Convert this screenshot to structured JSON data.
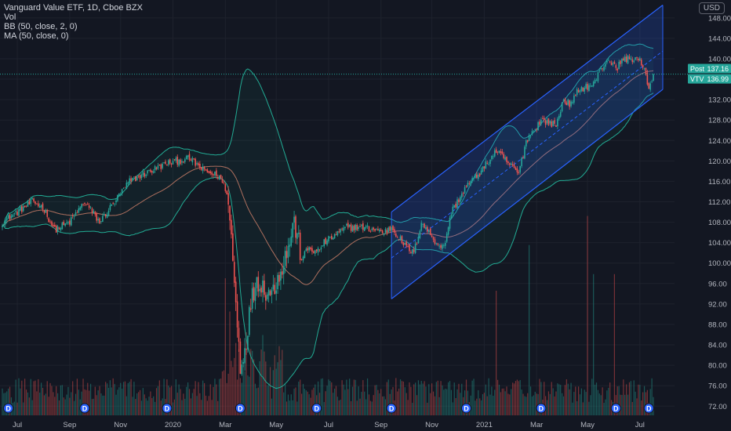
{
  "chart_data": {
    "type": "candlestick",
    "title": "Vanguard Value ETF, 1D, Cboe BZX",
    "indicators": [
      "Vol",
      "BB (50, close, 2, 0)",
      "MA (50, close, 0)"
    ],
    "currency": "USD",
    "y_axis": {
      "ticks": [
        "148.00",
        "144.00",
        "140.00",
        "136.00",
        "132.00",
        "128.00",
        "124.00",
        "120.00",
        "116.00",
        "112.00",
        "108.00",
        "104.00",
        "100.00",
        "96.00",
        "92.00",
        "88.00",
        "84.00",
        "80.00",
        "76.00",
        "72.00"
      ],
      "range": [
        70.2,
        151.5
      ]
    },
    "x_axis": {
      "ticks": [
        "Jul",
        "Sep",
        "Nov",
        "2020",
        "Mar",
        "May",
        "Jul",
        "Sep",
        "Nov",
        "2021",
        "Mar",
        "May",
        "Jul"
      ]
    },
    "price_tags": [
      {
        "label": "Post",
        "value": "137.16"
      },
      {
        "label": "VTV",
        "value": "136.99"
      }
    ],
    "last_price": 136.99,
    "close_series": {
      "anchors": [
        [
          0,
          108
        ],
        [
          10,
          110
        ],
        [
          20,
          112
        ],
        [
          27,
          111
        ],
        [
          35,
          106.5
        ],
        [
          45,
          108
        ],
        [
          55,
          112
        ],
        [
          65,
          108
        ],
        [
          75,
          112
        ],
        [
          85,
          116
        ],
        [
          95,
          117.5
        ],
        [
          110,
          119.5
        ],
        [
          125,
          120.5
        ],
        [
          135,
          118
        ],
        [
          145,
          117
        ],
        [
          150,
          114
        ],
        [
          153,
          105
        ],
        [
          156,
          92
        ],
        [
          159,
          80
        ],
        [
          162,
          83
        ],
        [
          166,
          92
        ],
        [
          170,
          97
        ],
        [
          175,
          95
        ],
        [
          180,
          94
        ],
        [
          185,
          98
        ],
        [
          190,
          102
        ],
        [
          195,
          108
        ],
        [
          200,
          101
        ],
        [
          205,
          103
        ],
        [
          210,
          102
        ],
        [
          215,
          104
        ],
        [
          220,
          105
        ],
        [
          230,
          107
        ],
        [
          240,
          107
        ],
        [
          250,
          106.5
        ],
        [
          255,
          106
        ],
        [
          260,
          107
        ],
        [
          265,
          105
        ],
        [
          270,
          103
        ],
        [
          275,
          102
        ],
        [
          280,
          108
        ],
        [
          285,
          106
        ],
        [
          290,
          104
        ],
        [
          295,
          103
        ],
        [
          300,
          110
        ],
        [
          310,
          115
        ],
        [
          320,
          118
        ],
        [
          330,
          122
        ],
        [
          340,
          119
        ],
        [
          345,
          117.5
        ],
        [
          350,
          124
        ],
        [
          360,
          128
        ],
        [
          370,
          127
        ],
        [
          375,
          132
        ],
        [
          380,
          131
        ],
        [
          385,
          134
        ],
        [
          395,
          135
        ],
        [
          400,
          138
        ],
        [
          405,
          140
        ],
        [
          410,
          138
        ],
        [
          415,
          140
        ],
        [
          420,
          140
        ],
        [
          425,
          140
        ],
        [
          430,
          137
        ],
        [
          432,
          134
        ],
        [
          435,
          136.99
        ]
      ],
      "n_bars": 436
    },
    "regression_channel": {
      "start_index": 260,
      "end_index": 436,
      "center": [
        101.0,
        141.5
      ],
      "upper": [
        110.0,
        150.5
      ],
      "lower": [
        93.0,
        134.0
      ]
    },
    "dividend_markers": {
      "label": "D",
      "indices": [
        4,
        55,
        110,
        159,
        210,
        260,
        310,
        360,
        410,
        432
      ]
    },
    "volume_spikes": [
      {
        "index": 149,
        "rel": 0.33
      },
      {
        "index": 152,
        "rel": 0.25
      },
      {
        "index": 163,
        "rel": 0.2
      },
      {
        "index": 330,
        "rel": 0.3
      },
      {
        "index": 352,
        "rel": 0.41
      },
      {
        "index": 391,
        "rel": 0.48
      },
      {
        "index": 395,
        "rel": 0.34
      },
      {
        "index": 409,
        "rel": 0.34
      }
    ]
  },
  "colors": {
    "background": "#131722",
    "text": "#d1d4dc",
    "axis_text": "#b2b5be",
    "grid": "#1e222d",
    "up": "#26a69a",
    "down": "#ef5350",
    "ma": "#d4836b",
    "bb_band": "#22ab94",
    "bb_fill": "rgba(34,171,148,0.07)",
    "channel_line": "#2962ff",
    "channel_fill": "rgba(41,98,255,0.20)",
    "price_line": "#26a69a",
    "tag_bg": "#26a69a"
  }
}
